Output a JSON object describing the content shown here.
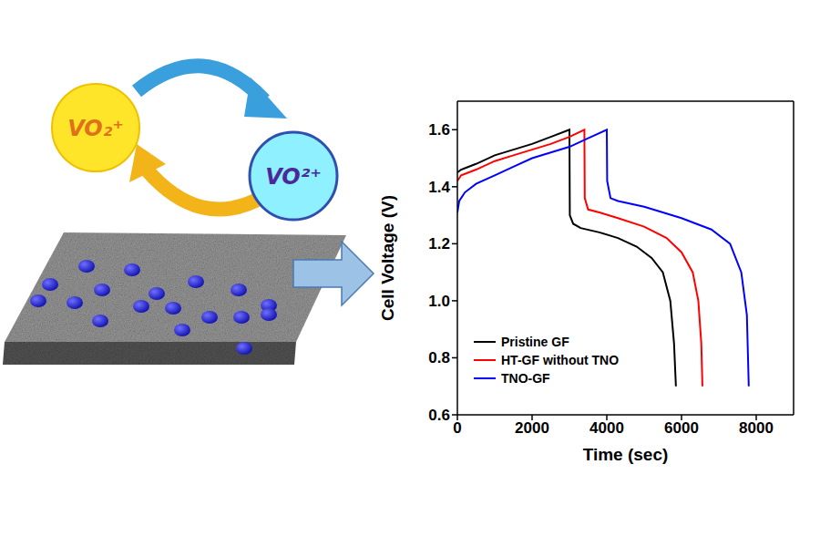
{
  "diagram": {
    "species": [
      "VO₂⁺",
      "VO²⁺"
    ]
  },
  "chart_data": {
    "type": "line",
    "xlabel": "Time (sec)",
    "ylabel": "Cell Voltage (V)",
    "xlim": [
      0,
      9000
    ],
    "xticks": [
      0,
      2000,
      4000,
      6000,
      8000
    ],
    "ylim": [
      0.6,
      1.7
    ],
    "yticks": [
      0.6,
      0.8,
      {
        "value": 1,
        "label": "1.0"
      },
      1.2,
      1.4,
      1.6
    ],
    "legend": "lower left",
    "series": [
      {
        "name": "Pristine GF",
        "color": "#000000",
        "x": [
          0,
          100,
          500,
          1000,
          1500,
          2000,
          2500,
          3000,
          3010,
          3100,
          3300,
          3800,
          4300,
          4800,
          5200,
          5500,
          5700,
          5800,
          5850
        ],
        "values": [
          1.45,
          1.46,
          1.48,
          1.51,
          1.53,
          1.55,
          1.575,
          1.6,
          1.3,
          1.27,
          1.255,
          1.24,
          1.22,
          1.19,
          1.15,
          1.1,
          1.0,
          0.85,
          0.7
        ]
      },
      {
        "name": "HT-GF without TNO",
        "color": "#ff0000",
        "x": [
          0,
          100,
          500,
          1000,
          1500,
          2000,
          2500,
          3000,
          3400,
          3410,
          3500,
          3800,
          4300,
          5000,
          5600,
          6000,
          6300,
          6450,
          6530,
          6560
        ],
        "values": [
          1.42,
          1.44,
          1.46,
          1.49,
          1.51,
          1.53,
          1.55,
          1.575,
          1.6,
          1.36,
          1.32,
          1.31,
          1.29,
          1.26,
          1.22,
          1.17,
          1.1,
          1.0,
          0.85,
          0.7
        ]
      },
      {
        "name": "TNO-GF",
        "color": "#0000ff",
        "x": [
          0,
          50,
          200,
          500,
          1000,
          1500,
          2000,
          2500,
          3000,
          3500,
          4000,
          4010,
          4100,
          4300,
          5000,
          6000,
          6800,
          7300,
          7600,
          7750,
          7800
        ],
        "values": [
          1.31,
          1.35,
          1.38,
          1.41,
          1.44,
          1.47,
          1.5,
          1.52,
          1.54,
          1.57,
          1.6,
          1.42,
          1.36,
          1.35,
          1.33,
          1.29,
          1.25,
          1.2,
          1.1,
          0.95,
          0.7
        ]
      }
    ]
  }
}
